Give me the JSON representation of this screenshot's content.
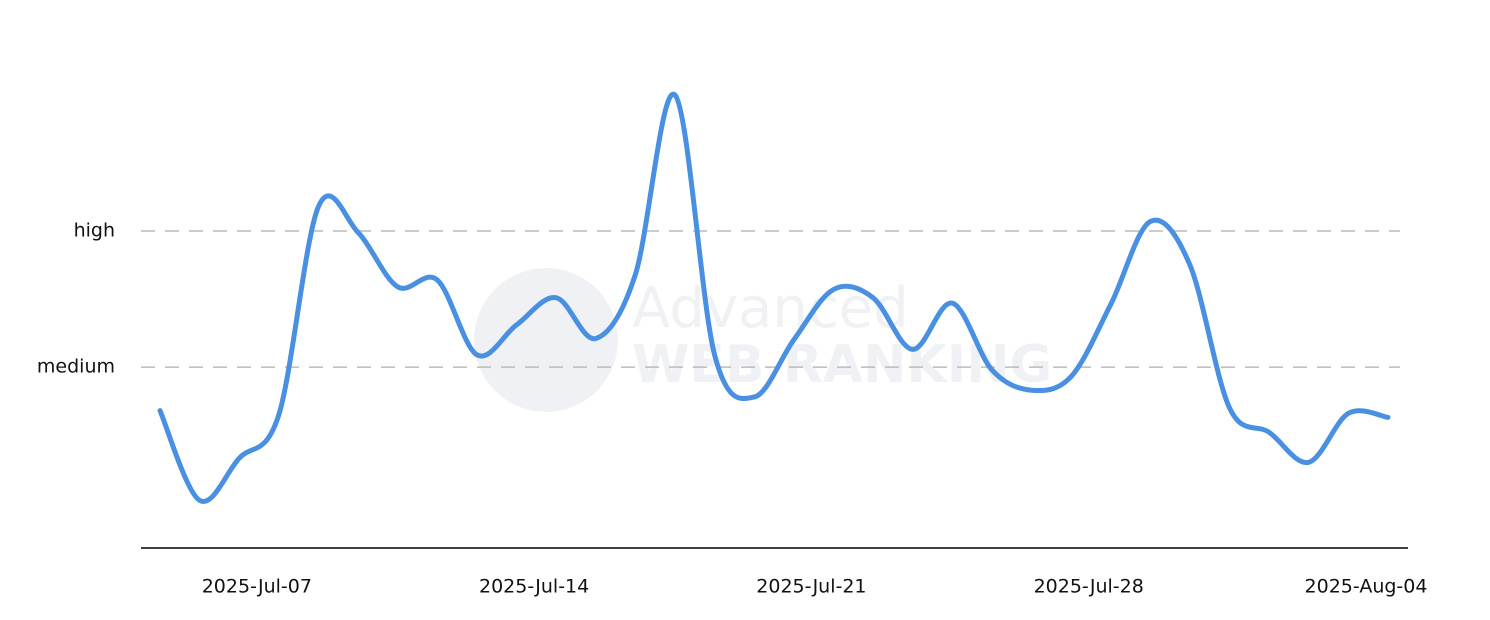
{
  "chart_data": {
    "type": "line",
    "x": [
      "2025-Jul-04",
      "2025-Jul-05",
      "2025-Jul-06",
      "2025-Jul-07",
      "2025-Jul-08",
      "2025-Jul-09",
      "2025-Jul-10",
      "2025-Jul-11",
      "2025-Jul-12",
      "2025-Jul-13",
      "2025-Jul-14",
      "2025-Jul-15",
      "2025-Jul-16",
      "2025-Jul-17",
      "2025-Jul-18",
      "2025-Jul-19",
      "2025-Jul-20",
      "2025-Jul-21",
      "2025-Jul-22",
      "2025-Jul-23",
      "2025-Jul-24",
      "2025-Jul-25",
      "2025-Jul-26",
      "2025-Jul-27",
      "2025-Jul-28",
      "2025-Jul-29",
      "2025-Jul-30",
      "2025-Jul-31",
      "2025-Aug-01",
      "2025-Aug-02",
      "2025-Aug-03",
      "2025-Aug-04"
    ],
    "series": [
      {
        "color": "#4a90e2",
        "values": [
          1.68,
          1.02,
          1.33,
          1.65,
          3.18,
          2.99,
          2.59,
          2.64,
          2.09,
          2.31,
          2.51,
          2.21,
          2.68,
          4.0,
          2.09,
          1.78,
          2.2,
          2.57,
          2.51,
          2.13,
          2.47,
          1.98,
          1.83,
          1.93,
          2.46,
          3.07,
          2.75,
          1.7,
          1.52,
          1.3,
          1.66,
          1.63
        ]
      }
    ],
    "xticks": [
      "2025-Jul-07",
      "2025-Jul-14",
      "2025-Jul-21",
      "2025-Jul-28",
      "2025-Aug-04"
    ],
    "ylim": [
      0.67,
      4.0
    ],
    "yticks": [
      {
        "value": 2,
        "label": "medium"
      },
      {
        "value": 3,
        "label": "high"
      }
    ],
    "grid": true
  },
  "watermark": {
    "line1": "Advanced",
    "line2": "WEB RANKING"
  }
}
